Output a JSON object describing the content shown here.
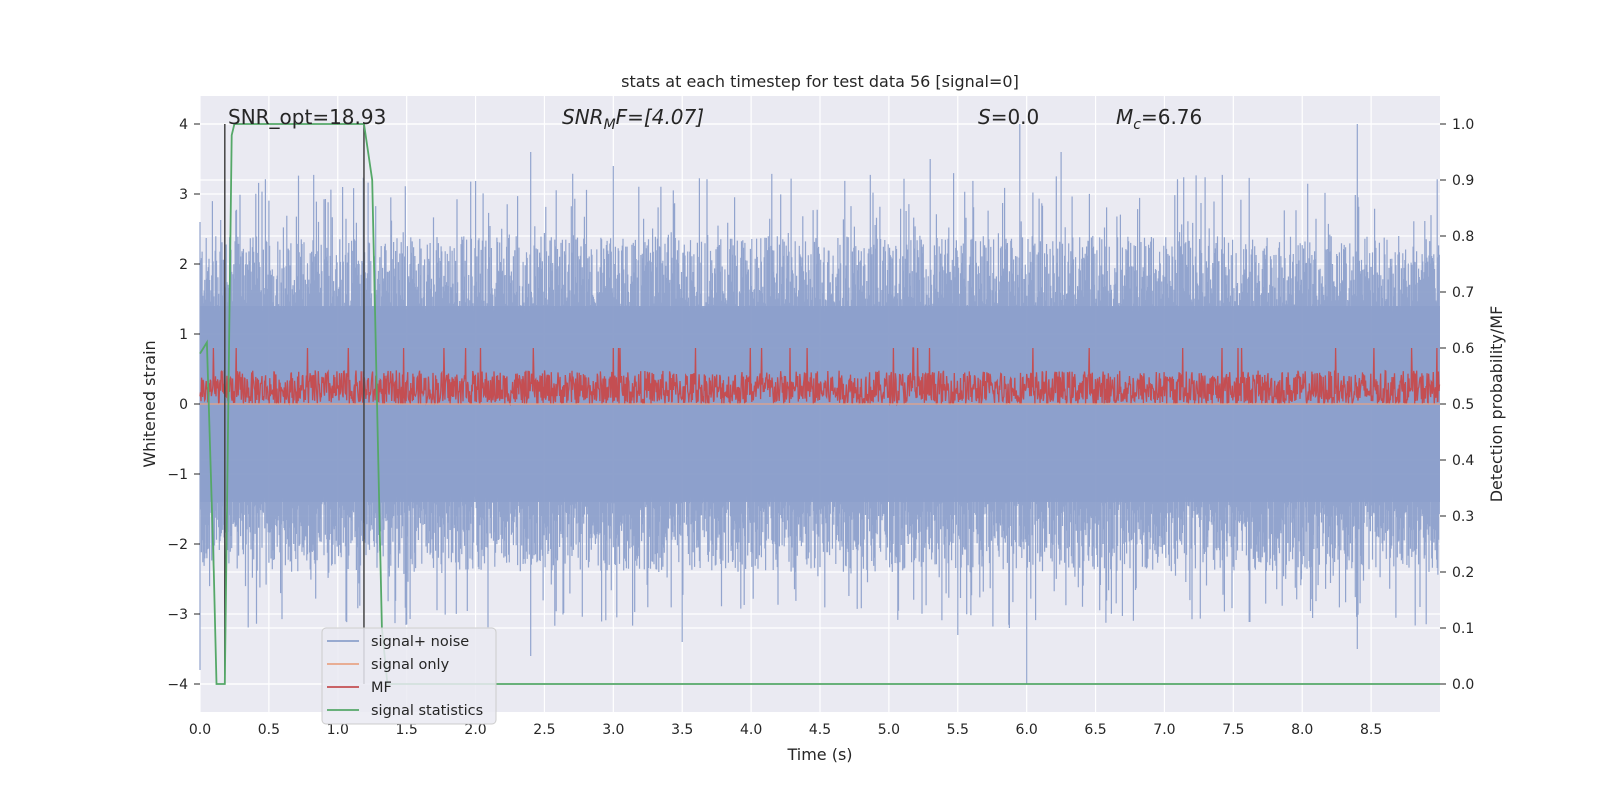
{
  "chart_data": {
    "type": "line",
    "title": "stats at each timestep for test data 56 [signal=0]",
    "xlabel": "Time (s)",
    "ylabel": "Whitened strain",
    "y2label": "Detection probability/MF",
    "xlim": [
      0,
      9.0
    ],
    "ylim": [
      -4.4,
      4.4
    ],
    "y2lim": [
      -0.05,
      1.05
    ],
    "grid": true,
    "xticks": [
      0.0,
      0.5,
      1.0,
      1.5,
      2.0,
      2.5,
      3.0,
      3.5,
      4.0,
      4.5,
      5.0,
      5.5,
      6.0,
      6.5,
      7.0,
      7.5,
      8.0,
      8.5
    ],
    "xtick_labels": [
      "0.0",
      "0.5",
      "1.0",
      "1.5",
      "2.0",
      "2.5",
      "3.0",
      "3.5",
      "4.0",
      "4.5",
      "5.0",
      "5.5",
      "6.0",
      "6.5",
      "7.0",
      "7.5",
      "8.0",
      "8.5"
    ],
    "yticks": [
      -4,
      -3,
      -2,
      -1,
      0,
      1,
      2,
      3,
      4
    ],
    "ytick_labels": [
      "−4",
      "−3",
      "−2",
      "−1",
      "0",
      "1",
      "2",
      "3",
      "4"
    ],
    "y2ticks": [
      0.0,
      0.1,
      0.2,
      0.3,
      0.4,
      0.5,
      0.6,
      0.7,
      0.8,
      0.9,
      1.0
    ],
    "y2tick_labels": [
      "0.0",
      "0.1",
      "0.2",
      "0.3",
      "0.4",
      "0.5",
      "0.6",
      "0.7",
      "0.8",
      "0.9",
      "1.0"
    ],
    "annotations": {
      "snr_opt": "SNR_opt=18.93",
      "snr_mf_prefix": "SNR",
      "snr_mf_sub": "M",
      "snr_mf_rest": "F=[4.07]",
      "s_var": "S",
      "s_rest": "=0.0",
      "mc_var": "M",
      "mc_sub": "c",
      "mc_rest": "=6.76"
    },
    "legend": {
      "placement": "lower-left",
      "entries": [
        "signal+ noise",
        "signal only",
        "MF",
        "signal statistics"
      ]
    },
    "series": [
      {
        "name": "signal+ noise",
        "color": "#8da0cb",
        "axis": "left",
        "kind": "noise",
        "envelope_upper": 2.4,
        "envelope_lower": -2.4,
        "peak_times": [
          0.0,
          2.4,
          3.0,
          5.3,
          5.95,
          6.25,
          8.4
        ],
        "peak_values": [
          2.6,
          3.6,
          3.4,
          3.5,
          4.0,
          3.6,
          4.0
        ],
        "trough_times": [
          0.0,
          2.4,
          3.5,
          5.5,
          6.0,
          8.4
        ],
        "trough_values": [
          -3.8,
          -3.6,
          -3.4,
          -3.3,
          -4.0,
          -3.5
        ]
      },
      {
        "name": "signal only",
        "color": "#e8a486",
        "axis": "left",
        "x": [
          0.0,
          9.0
        ],
        "y": [
          0.0,
          0.0
        ]
      },
      {
        "name": "MF",
        "color": "#c44e52",
        "axis": "right",
        "kind": "noise",
        "baseline": 0.5,
        "typical_max": 0.56,
        "peak_values": [
          0.6,
          0.58
        ]
      },
      {
        "name": "signal statistics",
        "color": "#55a868",
        "axis": "right",
        "x": [
          0.0,
          0.05,
          0.1,
          0.12,
          0.18,
          0.23,
          0.25,
          0.5,
          0.8,
          1.19,
          1.25,
          1.32,
          1.36,
          1.4,
          9.0
        ],
        "y": [
          0.59,
          0.61,
          0.2,
          0.0,
          0.0,
          0.98,
          1.0,
          1.0,
          1.0,
          1.0,
          0.9,
          0.1,
          0.0,
          0.0,
          0.0
        ]
      }
    ],
    "vertical_markers": {
      "color": "#444444",
      "x": [
        0.18,
        1.19
      ],
      "ymin": -4.0,
      "ymax": 4.0
    }
  }
}
